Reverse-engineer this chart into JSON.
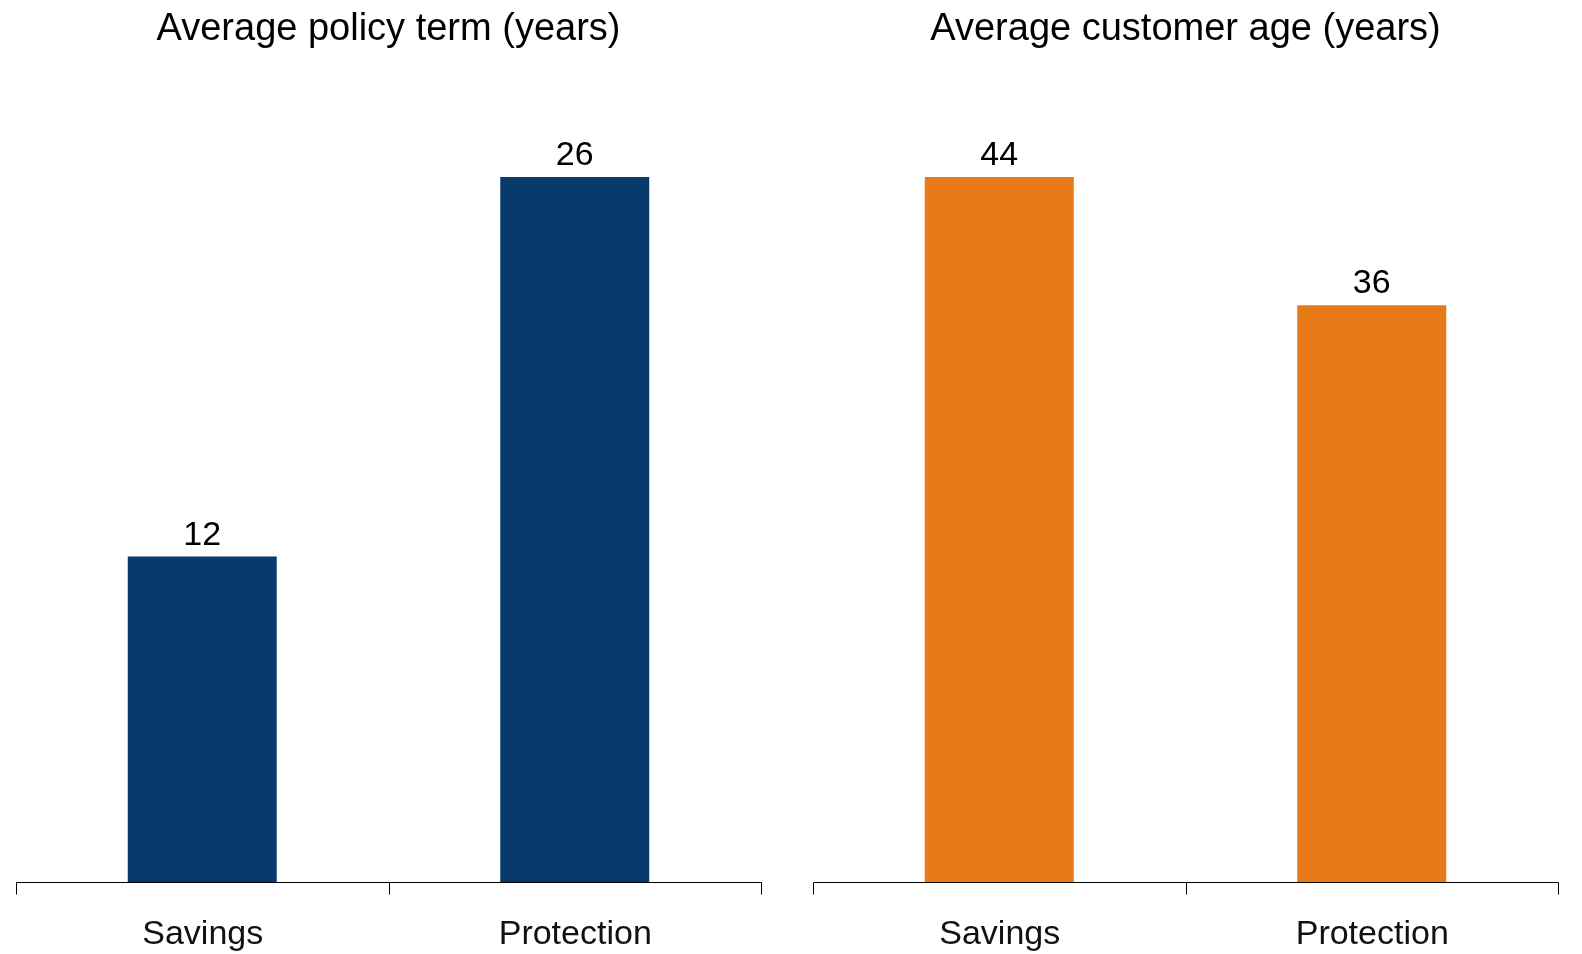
{
  "chart_data": [
    {
      "type": "bar",
      "title": "Average policy term (years)",
      "categories": [
        "Savings",
        "Protection"
      ],
      "values": [
        12,
        26
      ],
      "color": "#083b6b",
      "data_labels": true
    },
    {
      "type": "bar",
      "title": "Average customer age (years)",
      "categories": [
        "Savings",
        "Protection"
      ],
      "values": [
        44,
        36
      ],
      "color": "#e67a19",
      "data_labels": true
    }
  ]
}
